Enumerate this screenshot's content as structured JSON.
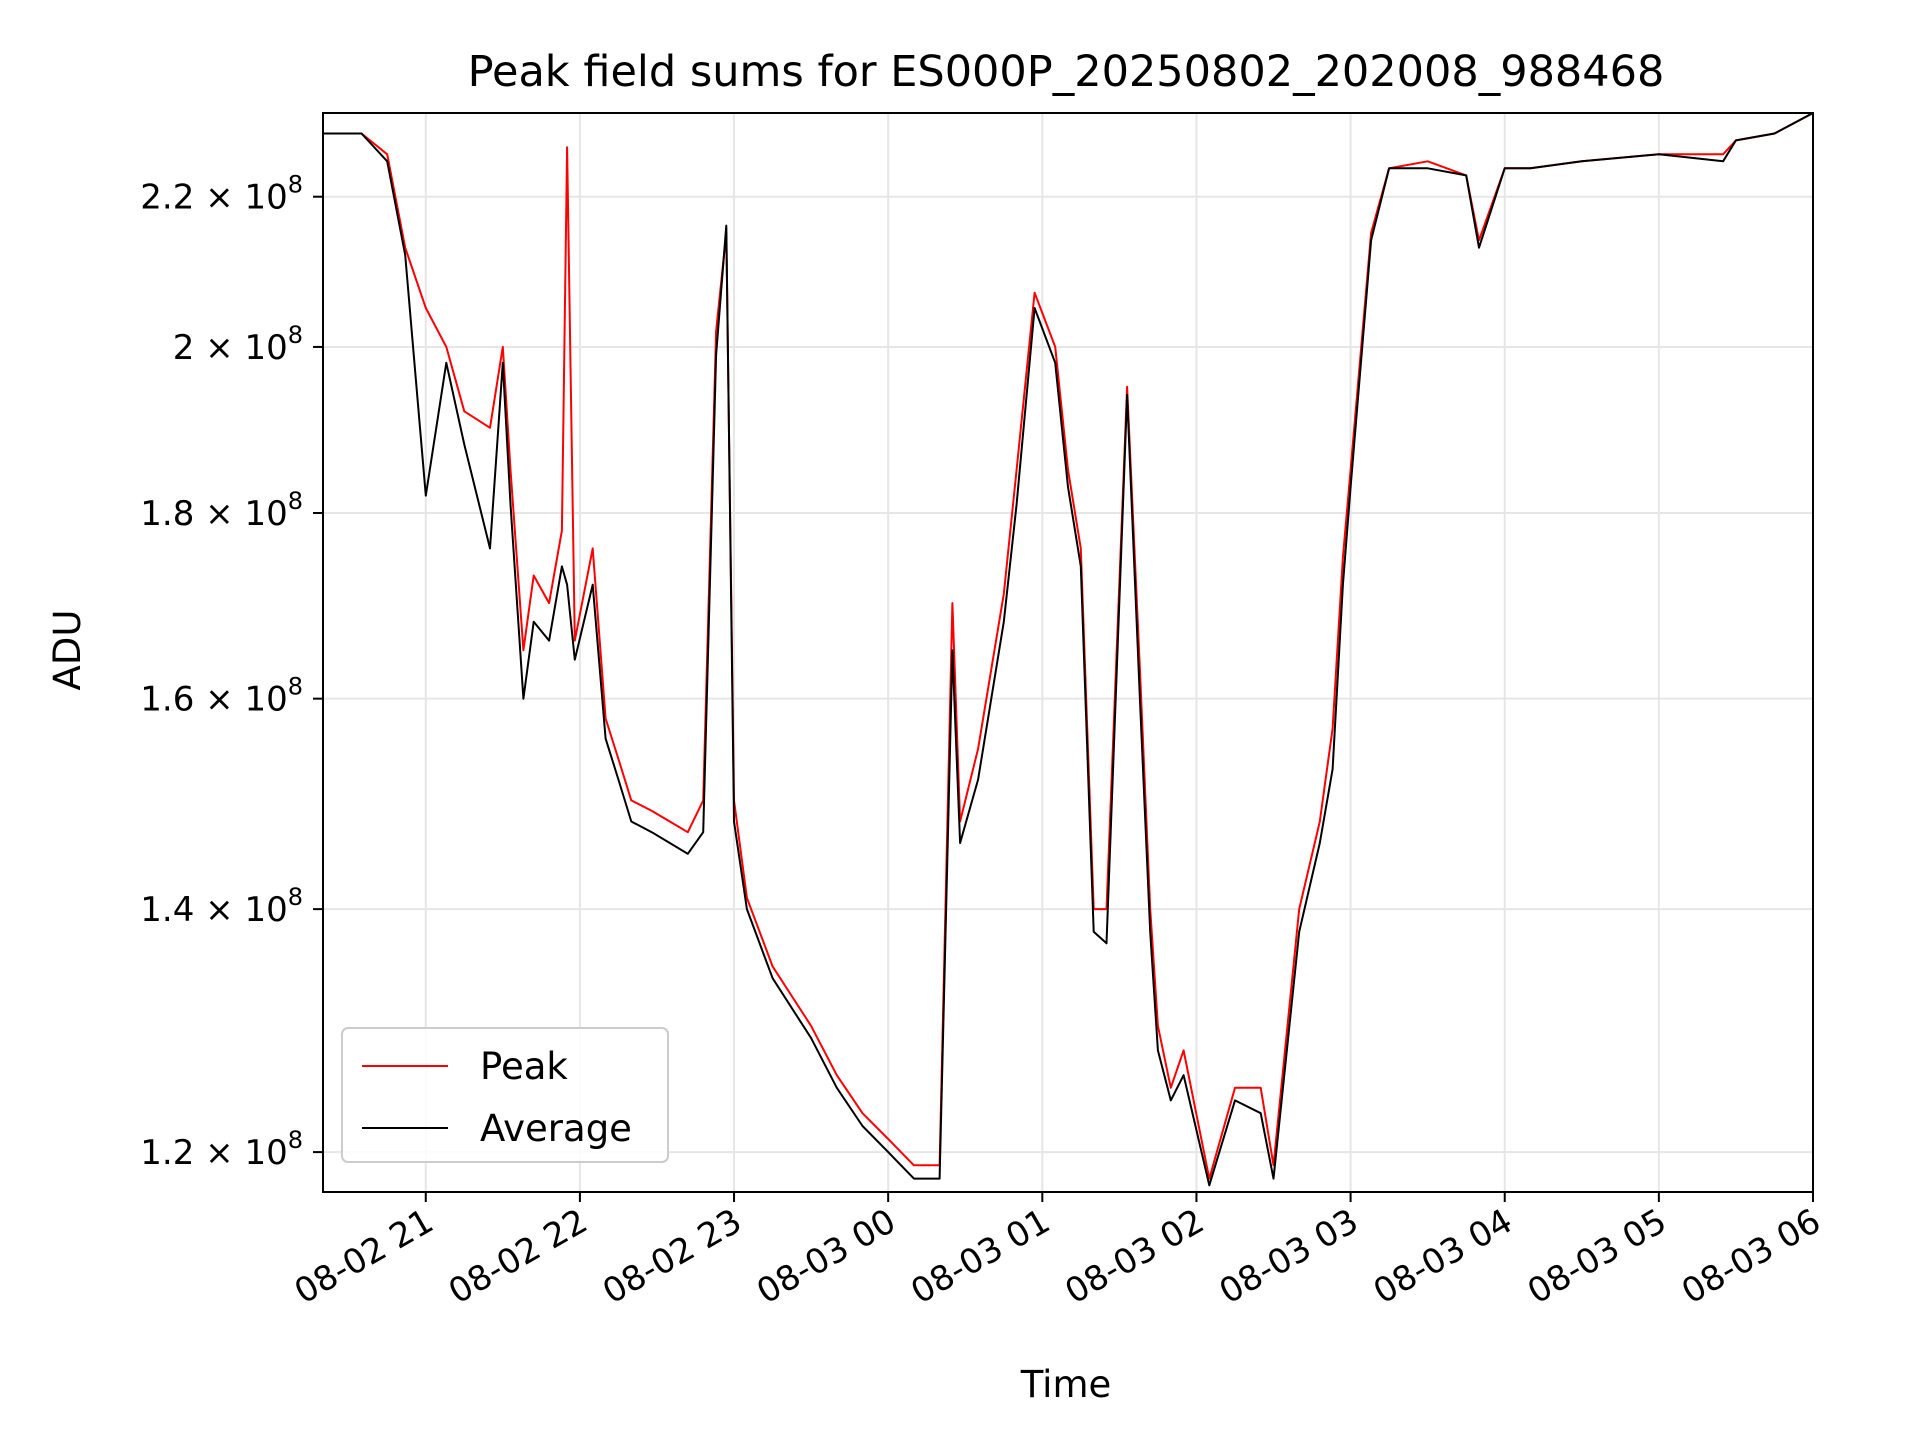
{
  "chart_data": {
    "type": "line",
    "title": "Peak field sums for ES000P_20250802_202008_988468",
    "xlabel": "Time",
    "ylabel": "ADU",
    "y_scale": "log",
    "grid": true,
    "legend_position": "lower-left",
    "xlim": [
      "2025-08-02 20:20",
      "2025-08-03 06:00"
    ],
    "ylim": [
      117000000,
      232000000
    ],
    "x_ticks": [
      {
        "value": "2025-08-02 21:00",
        "label": "08-02 21"
      },
      {
        "value": "2025-08-02 22:00",
        "label": "08-02 22"
      },
      {
        "value": "2025-08-02 23:00",
        "label": "08-02 23"
      },
      {
        "value": "2025-08-03 00:00",
        "label": "08-03 00"
      },
      {
        "value": "2025-08-03 01:00",
        "label": "08-03 01"
      },
      {
        "value": "2025-08-03 02:00",
        "label": "08-03 02"
      },
      {
        "value": "2025-08-03 03:00",
        "label": "08-03 03"
      },
      {
        "value": "2025-08-03 04:00",
        "label": "08-03 04"
      },
      {
        "value": "2025-08-03 05:00",
        "label": "08-03 05"
      },
      {
        "value": "2025-08-03 06:00",
        "label": "08-03 06"
      }
    ],
    "y_ticks": [
      {
        "value": 120000000,
        "label": "1.2 × 10",
        "exp": "8"
      },
      {
        "value": 140000000,
        "label": "1.4 × 10",
        "exp": "8"
      },
      {
        "value": 160000000,
        "label": "1.6 × 10",
        "exp": "8"
      },
      {
        "value": 180000000,
        "label": "1.8 × 10",
        "exp": "8"
      },
      {
        "value": 200000000,
        "label": "2 × 10",
        "exp": "8"
      },
      {
        "value": 220000000,
        "label": "2.2 × 10",
        "exp": "8"
      }
    ],
    "series": [
      {
        "name": "Peak",
        "color": "#ff0000",
        "x": [
          "2025-08-02 20:20",
          "2025-08-02 20:35",
          "2025-08-02 20:45",
          "2025-08-02 20:52",
          "2025-08-02 21:00",
          "2025-08-02 21:08",
          "2025-08-02 21:15",
          "2025-08-02 21:25",
          "2025-08-02 21:30",
          "2025-08-02 21:33",
          "2025-08-02 21:38",
          "2025-08-02 21:42",
          "2025-08-02 21:48",
          "2025-08-02 21:53",
          "2025-08-02 21:55",
          "2025-08-02 21:58",
          "2025-08-02 22:05",
          "2025-08-02 22:10",
          "2025-08-02 22:15",
          "2025-08-02 22:20",
          "2025-08-02 22:28",
          "2025-08-02 22:35",
          "2025-08-02 22:42",
          "2025-08-02 22:48",
          "2025-08-02 22:53",
          "2025-08-02 22:57",
          "2025-08-02 23:00",
          "2025-08-02 23:05",
          "2025-08-02 23:15",
          "2025-08-02 23:30",
          "2025-08-02 23:40",
          "2025-08-02 23:50",
          "2025-08-03 00:00",
          "2025-08-03 00:10",
          "2025-08-03 00:20",
          "2025-08-03 00:25",
          "2025-08-03 00:28",
          "2025-08-03 00:35",
          "2025-08-03 00:45",
          "2025-08-03 00:50",
          "2025-08-03 00:57",
          "2025-08-03 01:05",
          "2025-08-03 01:10",
          "2025-08-03 01:15",
          "2025-08-03 01:20",
          "2025-08-03 01:25",
          "2025-08-03 01:33",
          "2025-08-03 01:38",
          "2025-08-03 01:42",
          "2025-08-03 01:45",
          "2025-08-03 01:50",
          "2025-08-03 01:55",
          "2025-08-03 02:05",
          "2025-08-03 02:15",
          "2025-08-03 02:25",
          "2025-08-03 02:30",
          "2025-08-03 02:40",
          "2025-08-03 02:48",
          "2025-08-03 02:53",
          "2025-08-03 02:57",
          "2025-08-03 03:00",
          "2025-08-03 03:08",
          "2025-08-03 03:15",
          "2025-08-03 03:30",
          "2025-08-03 03:45",
          "2025-08-03 03:50",
          "2025-08-03 04:00",
          "2025-08-03 04:10",
          "2025-08-03 04:30",
          "2025-08-03 05:00",
          "2025-08-03 05:25",
          "2025-08-03 05:30",
          "2025-08-03 05:45",
          "2025-08-03 06:00"
        ],
        "values": [
          229000000,
          229000000,
          226000000,
          213000000,
          205000000,
          200000000,
          192000000,
          190000000,
          200000000,
          185000000,
          165000000,
          173000000,
          170000000,
          178000000,
          227000000,
          166000000,
          176000000,
          158000000,
          154000000,
          150000000,
          149000000,
          148000000,
          147000000,
          150000000,
          202000000,
          215000000,
          150000000,
          141000000,
          135000000,
          130000000,
          126000000,
          123000000,
          121000000,
          119000000,
          119000000,
          170000000,
          148000000,
          155000000,
          171000000,
          185000000,
          207000000,
          200000000,
          185000000,
          176000000,
          140000000,
          140000000,
          195000000,
          163000000,
          140000000,
          130000000,
          125000000,
          128000000,
          118000000,
          125000000,
          125000000,
          119000000,
          140000000,
          148000000,
          157000000,
          175000000,
          185000000,
          215000000,
          224000000,
          225000000,
          223000000,
          214000000,
          224000000,
          224000000,
          225000000,
          226000000,
          226000000,
          228000000,
          229000000,
          232000000
        ]
      },
      {
        "name": "Average",
        "color": "#000000",
        "x": [
          "2025-08-02 20:20",
          "2025-08-02 20:35",
          "2025-08-02 20:45",
          "2025-08-02 20:52",
          "2025-08-02 21:00",
          "2025-08-02 21:08",
          "2025-08-02 21:15",
          "2025-08-02 21:25",
          "2025-08-02 21:30",
          "2025-08-02 21:33",
          "2025-08-02 21:38",
          "2025-08-02 21:42",
          "2025-08-02 21:48",
          "2025-08-02 21:53",
          "2025-08-02 21:55",
          "2025-08-02 21:58",
          "2025-08-02 22:05",
          "2025-08-02 22:10",
          "2025-08-02 22:15",
          "2025-08-02 22:20",
          "2025-08-02 22:28",
          "2025-08-02 22:35",
          "2025-08-02 22:42",
          "2025-08-02 22:48",
          "2025-08-02 22:53",
          "2025-08-02 22:57",
          "2025-08-02 23:00",
          "2025-08-02 23:05",
          "2025-08-02 23:15",
          "2025-08-02 23:30",
          "2025-08-02 23:40",
          "2025-08-02 23:50",
          "2025-08-03 00:00",
          "2025-08-03 00:10",
          "2025-08-03 00:20",
          "2025-08-03 00:25",
          "2025-08-03 00:28",
          "2025-08-03 00:35",
          "2025-08-03 00:45",
          "2025-08-03 00:50",
          "2025-08-03 00:57",
          "2025-08-03 01:05",
          "2025-08-03 01:10",
          "2025-08-03 01:15",
          "2025-08-03 01:20",
          "2025-08-03 01:25",
          "2025-08-03 01:33",
          "2025-08-03 01:38",
          "2025-08-03 01:42",
          "2025-08-03 01:45",
          "2025-08-03 01:50",
          "2025-08-03 01:55",
          "2025-08-03 02:05",
          "2025-08-03 02:15",
          "2025-08-03 02:25",
          "2025-08-03 02:30",
          "2025-08-03 02:40",
          "2025-08-03 02:48",
          "2025-08-03 02:53",
          "2025-08-03 02:57",
          "2025-08-03 03:00",
          "2025-08-03 03:08",
          "2025-08-03 03:15",
          "2025-08-03 03:30",
          "2025-08-03 03:45",
          "2025-08-03 03:50",
          "2025-08-03 04:00",
          "2025-08-03 04:10",
          "2025-08-03 04:30",
          "2025-08-03 05:00",
          "2025-08-03 05:25",
          "2025-08-03 05:30",
          "2025-08-03 05:45",
          "2025-08-03 06:00"
        ],
        "values": [
          229000000,
          229000000,
          225000000,
          212000000,
          182000000,
          198000000,
          188000000,
          176000000,
          198000000,
          181000000,
          160000000,
          168000000,
          166000000,
          174000000,
          172000000,
          164000000,
          172000000,
          156000000,
          152000000,
          148000000,
          147000000,
          146000000,
          145000000,
          147000000,
          199000000,
          216000000,
          148000000,
          140000000,
          134000000,
          129000000,
          125000000,
          122000000,
          120000000,
          118000000,
          118000000,
          165000000,
          146000000,
          152000000,
          168000000,
          181000000,
          205000000,
          198000000,
          183000000,
          174000000,
          138000000,
          137000000,
          194000000,
          160000000,
          138000000,
          128000000,
          124000000,
          126000000,
          117500000,
          124000000,
          123000000,
          118000000,
          138000000,
          146000000,
          153000000,
          172000000,
          183000000,
          214000000,
          224000000,
          224000000,
          223000000,
          213000000,
          224000000,
          224000000,
          225000000,
          226000000,
          225000000,
          228000000,
          229000000,
          232000000
        ]
      }
    ],
    "legend": [
      {
        "label": "Peak",
        "color": "#ff0000"
      },
      {
        "label": "Average",
        "color": "#000000"
      }
    ]
  }
}
